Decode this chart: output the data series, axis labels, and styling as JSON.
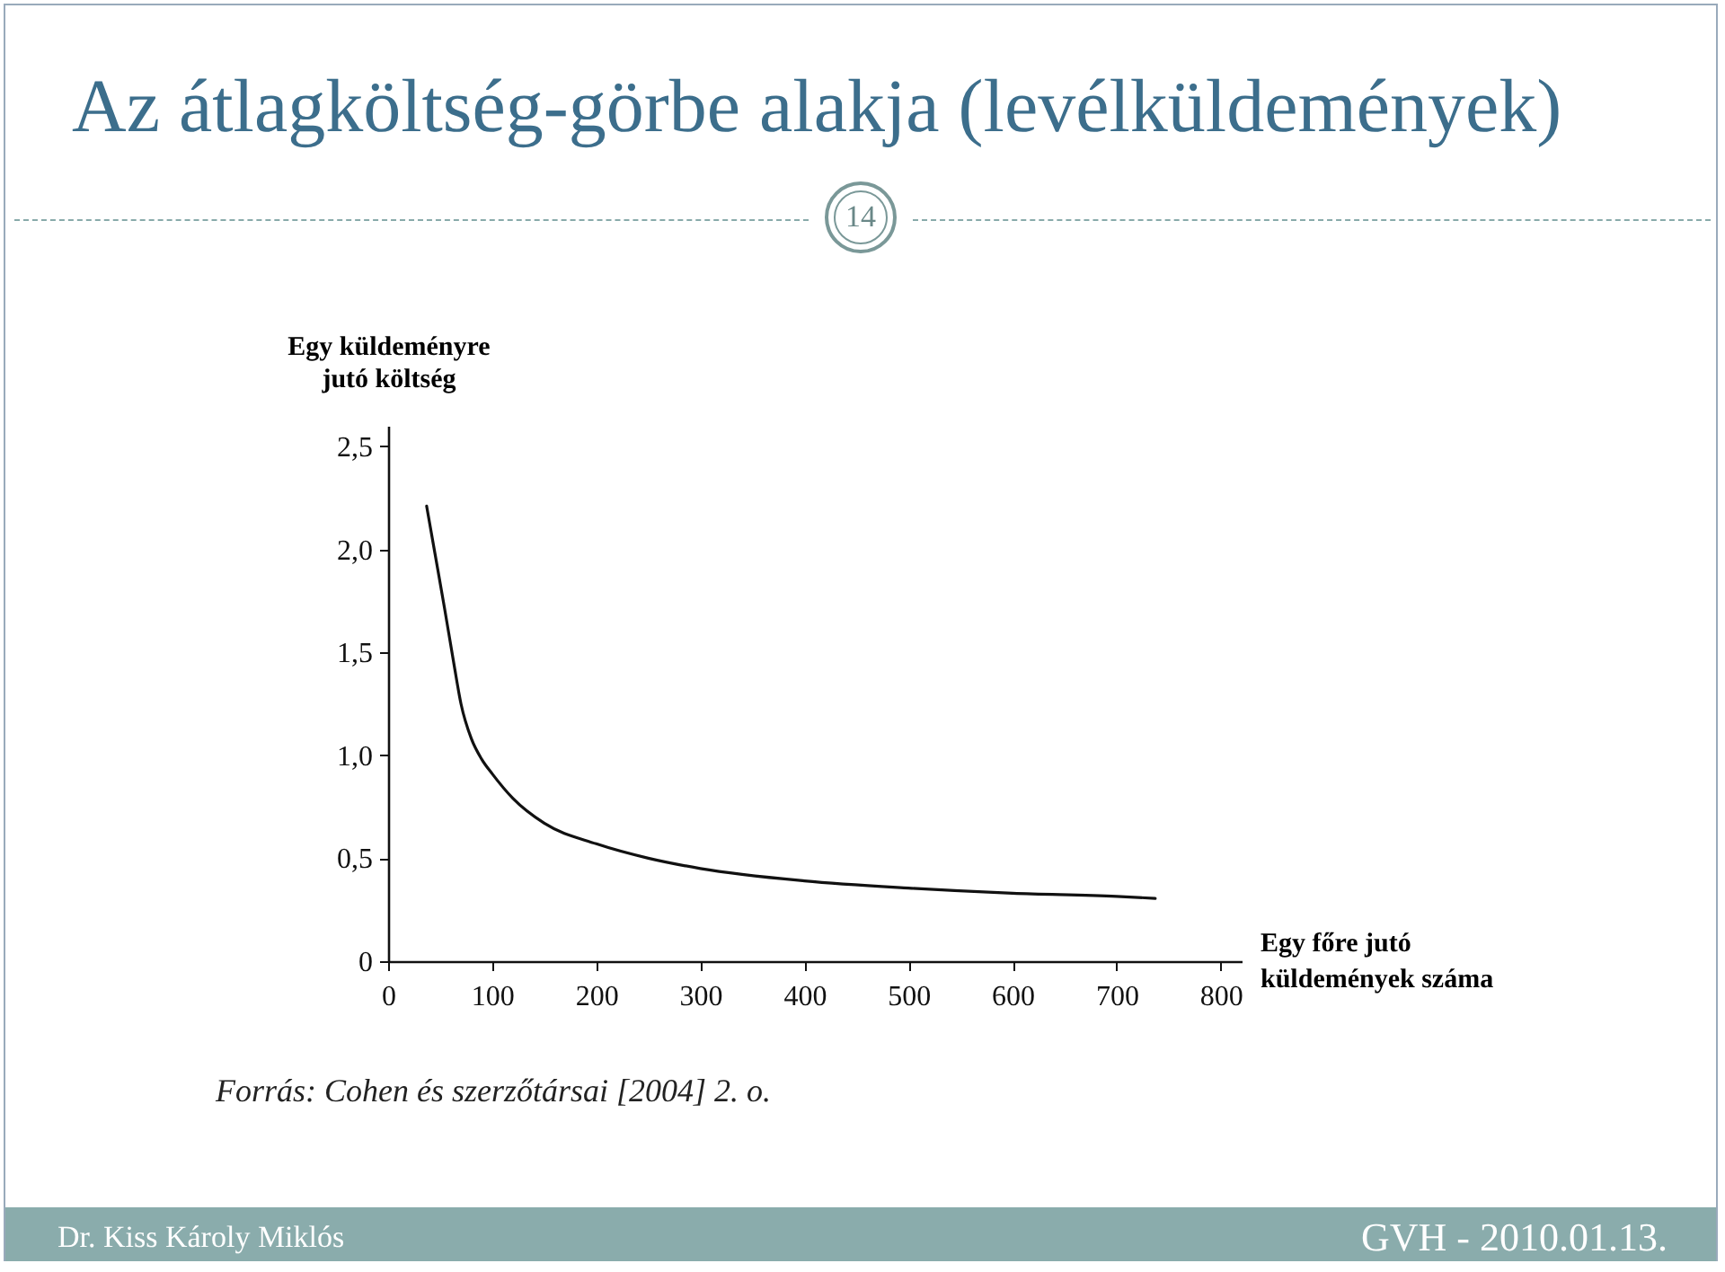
{
  "chart_data": {
    "type": "line",
    "title": "Az átlagköltség-görbe alakja (levélküldemények)",
    "xlabel": "Egy főre jutó\nküldemények száma",
    "ylabel": "Egy küldeményre\njutó költség",
    "annotations": [
      "14",
      "Forrás: Cohen és szerzőtársai [2004] 2. o.",
      "Dr. Kiss Károly Miklós",
      "GVH - 2010.01.13."
    ],
    "series": [
      {
        "color": "#111111",
        "x": [
          37,
          45,
          54,
          63,
          70,
          80,
          90,
          100,
          120,
          150,
          200,
          250,
          300,
          400,
          500,
          600,
          700,
          737
        ],
        "values": [
          2.21,
          1.98,
          1.72,
          1.45,
          1.25,
          1.08,
          0.98,
          0.91,
          0.79,
          0.67,
          0.57,
          0.5,
          0.45,
          0.39,
          0.355,
          0.33,
          0.315,
          0.305
        ]
      }
    ],
    "xlim": [
      0,
      820
    ],
    "xticks": [
      0,
      100,
      200,
      300,
      400,
      500,
      600,
      700,
      800
    ],
    "ylim": [
      0,
      2.6
    ],
    "yticks": [
      {
        "value": 0,
        "label": "0"
      },
      {
        "value": 0.5,
        "label": "0,5"
      },
      {
        "value": 1,
        "label": "1,0"
      },
      {
        "value": 1.5,
        "label": "1,5"
      },
      {
        "value": 2,
        "label": "2,0"
      },
      {
        "value": 2.5,
        "label": "2,5"
      }
    ],
    "grid": false,
    "legend": false,
    "marker": "none",
    "line_style": "solid"
  }
}
